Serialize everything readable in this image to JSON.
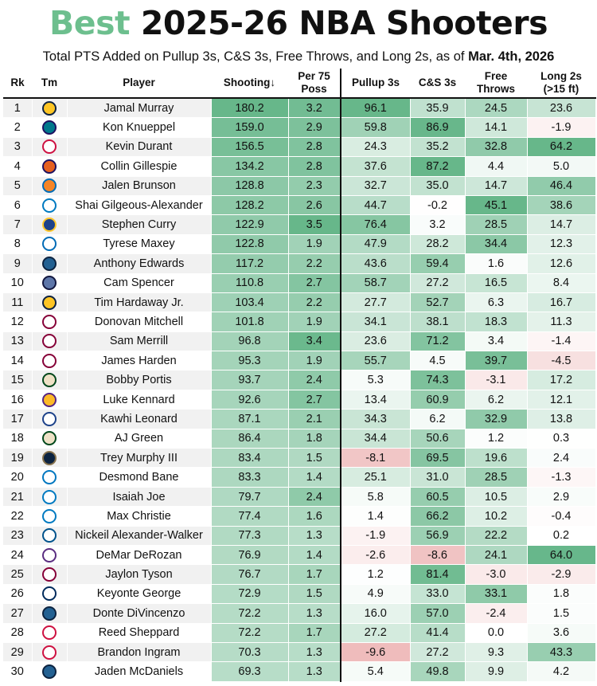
{
  "title": {
    "accent": "Best",
    "rest": "2025-26 NBA Shooters"
  },
  "subtitle": {
    "text": "Total PTS Added on Pullup 3s, C&S 3s, Free Throws, and Long 2s, as of ",
    "date": "Mar. 4th, 2026"
  },
  "headers": {
    "rk": "Rk",
    "tm": "Tm",
    "player": "Player",
    "shooting": "Shooting↓",
    "per75_1": "Per 75",
    "per75_2": "Poss",
    "pullup": "Pullup 3s",
    "cs": "C&S 3s",
    "ft_1": "Free",
    "ft_2": "Throws",
    "long_1": "Long 2s",
    "long_2": "(>15 ft)"
  },
  "colors": {
    "green": "#5fb384",
    "red": "#eeb9b9",
    "accent": "#6dbf8e"
  },
  "chart_data": {
    "type": "table",
    "title": "Best 2025-26 NBA Shooters",
    "columns": [
      "Rk",
      "Tm",
      "Player",
      "Shooting",
      "Per 75 Poss",
      "Pullup 3s",
      "C&S 3s",
      "Free Throws",
      "Long 2s (>15 ft)"
    ],
    "rows": [
      {
        "rk": "1",
        "team": "den-logo-icon",
        "player": "Jamal Murray",
        "shooting": "180.2",
        "per75": "3.2",
        "pullup": "96.1",
        "cs": "35.9",
        "ft": "24.5",
        "long2": "23.6"
      },
      {
        "rk": "2",
        "team": "cha-logo-icon",
        "player": "Kon Knueppel",
        "shooting": "159.0",
        "per75": "2.9",
        "pullup": "59.8",
        "cs": "86.9",
        "ft": "14.1",
        "long2": "-1.9"
      },
      {
        "rk": "3",
        "team": "hou-logo-icon",
        "player": "Kevin Durant",
        "shooting": "156.5",
        "per75": "2.8",
        "pullup": "24.3",
        "cs": "35.2",
        "ft": "32.8",
        "long2": "64.2"
      },
      {
        "rk": "4",
        "team": "phx-logo-icon",
        "player": "Collin Gillespie",
        "shooting": "134.2",
        "per75": "2.8",
        "pullup": "37.6",
        "cs": "87.2",
        "ft": "4.4",
        "long2": "5.0"
      },
      {
        "rk": "5",
        "team": "nyk-logo-icon",
        "player": "Jalen Brunson",
        "shooting": "128.8",
        "per75": "2.3",
        "pullup": "32.7",
        "cs": "35.0",
        "ft": "14.7",
        "long2": "46.4"
      },
      {
        "rk": "6",
        "team": "okc-logo-icon",
        "player": "Shai Gilgeous-Alexander",
        "shooting": "128.2",
        "per75": "2.6",
        "pullup": "44.7",
        "cs": "-0.2",
        "ft": "45.1",
        "long2": "38.6"
      },
      {
        "rk": "7",
        "team": "gsw-logo-icon",
        "player": "Stephen Curry",
        "shooting": "122.9",
        "per75": "3.5",
        "pullup": "76.4",
        "cs": "3.2",
        "ft": "28.5",
        "long2": "14.7"
      },
      {
        "rk": "8",
        "team": "phi-logo-icon",
        "player": "Tyrese Maxey",
        "shooting": "122.8",
        "per75": "1.9",
        "pullup": "47.9",
        "cs": "28.2",
        "ft": "34.4",
        "long2": "12.3"
      },
      {
        "rk": "9",
        "team": "min-logo-icon",
        "player": "Anthony Edwards",
        "shooting": "117.2",
        "per75": "2.2",
        "pullup": "43.6",
        "cs": "59.4",
        "ft": "1.6",
        "long2": "12.6"
      },
      {
        "rk": "10",
        "team": "mem-logo-icon",
        "player": "Cam Spencer",
        "shooting": "110.8",
        "per75": "2.7",
        "pullup": "58.7",
        "cs": "27.2",
        "ft": "16.5",
        "long2": "8.4"
      },
      {
        "rk": "11",
        "team": "den-logo-icon",
        "player": "Tim Hardaway Jr.",
        "shooting": "103.4",
        "per75": "2.2",
        "pullup": "27.7",
        "cs": "52.7",
        "ft": "6.3",
        "long2": "16.7"
      },
      {
        "rk": "12",
        "team": "cle-logo-icon",
        "player": "Donovan Mitchell",
        "shooting": "101.8",
        "per75": "1.9",
        "pullup": "34.1",
        "cs": "38.1",
        "ft": "18.3",
        "long2": "11.3"
      },
      {
        "rk": "13",
        "team": "cle-logo-icon",
        "player": "Sam Merrill",
        "shooting": "96.8",
        "per75": "3.4",
        "pullup": "23.6",
        "cs": "71.2",
        "ft": "3.4",
        "long2": "-1.4"
      },
      {
        "rk": "14",
        "team": "cle-logo-icon",
        "player": "James Harden",
        "shooting": "95.3",
        "per75": "1.9",
        "pullup": "55.7",
        "cs": "4.5",
        "ft": "39.7",
        "long2": "-4.5"
      },
      {
        "rk": "15",
        "team": "mil-logo-icon",
        "player": "Bobby Portis",
        "shooting": "93.7",
        "per75": "2.4",
        "pullup": "5.3",
        "cs": "74.3",
        "ft": "-3.1",
        "long2": "17.2"
      },
      {
        "rk": "16",
        "team": "lal-logo-icon",
        "player": "Luke Kennard",
        "shooting": "92.6",
        "per75": "2.7",
        "pullup": "13.4",
        "cs": "60.9",
        "ft": "6.2",
        "long2": "12.1"
      },
      {
        "rk": "17",
        "team": "lac-logo-icon",
        "player": "Kawhi Leonard",
        "shooting": "87.1",
        "per75": "2.1",
        "pullup": "34.3",
        "cs": "6.2",
        "ft": "32.9",
        "long2": "13.8"
      },
      {
        "rk": "18",
        "team": "mil-logo-icon",
        "player": "AJ Green",
        "shooting": "86.4",
        "per75": "1.8",
        "pullup": "34.4",
        "cs": "50.6",
        "ft": "1.2",
        "long2": "0.3"
      },
      {
        "rk": "19",
        "team": "nop-logo-icon",
        "player": "Trey Murphy III",
        "shooting": "83.4",
        "per75": "1.5",
        "pullup": "-8.1",
        "cs": "69.5",
        "ft": "19.6",
        "long2": "2.4"
      },
      {
        "rk": "20",
        "team": "orl-logo-icon",
        "player": "Desmond Bane",
        "shooting": "83.3",
        "per75": "1.4",
        "pullup": "25.1",
        "cs": "31.0",
        "ft": "28.5",
        "long2": "-1.3"
      },
      {
        "rk": "21",
        "team": "okc-logo-icon",
        "player": "Isaiah Joe",
        "shooting": "79.7",
        "per75": "2.4",
        "pullup": "5.8",
        "cs": "60.5",
        "ft": "10.5",
        "long2": "2.9"
      },
      {
        "rk": "22",
        "team": "okc-logo-icon",
        "player": "Max Christie",
        "shooting": "77.4",
        "per75": "1.6",
        "pullup": "1.4",
        "cs": "66.2",
        "ft": "10.2",
        "long2": "-0.4"
      },
      {
        "rk": "23",
        "team": "dal-logo-icon",
        "player": "Nickeil Alexander-Walker",
        "shooting": "77.3",
        "per75": "1.3",
        "pullup": "-1.9",
        "cs": "56.9",
        "ft": "22.2",
        "long2": "0.2"
      },
      {
        "rk": "24",
        "team": "sac-logo-icon",
        "player": "DeMar DeRozan",
        "shooting": "76.9",
        "per75": "1.4",
        "pullup": "-2.6",
        "cs": "-8.6",
        "ft": "24.1",
        "long2": "64.0"
      },
      {
        "rk": "25",
        "team": "cle-logo-icon",
        "player": "Jaylon Tyson",
        "shooting": "76.7",
        "per75": "1.7",
        "pullup": "1.2",
        "cs": "81.4",
        "ft": "-3.0",
        "long2": "-2.9"
      },
      {
        "rk": "26",
        "team": "uta-logo-icon",
        "player": "Keyonte George",
        "shooting": "72.9",
        "per75": "1.5",
        "pullup": "4.9",
        "cs": "33.0",
        "ft": "33.1",
        "long2": "1.8"
      },
      {
        "rk": "27",
        "team": "min-logo-icon",
        "player": "Donte DiVincenzo",
        "shooting": "72.2",
        "per75": "1.3",
        "pullup": "16.0",
        "cs": "57.0",
        "ft": "-2.4",
        "long2": "1.5"
      },
      {
        "rk": "28",
        "team": "hou-logo-icon",
        "player": "Reed Sheppard",
        "shooting": "72.2",
        "per75": "1.7",
        "pullup": "27.2",
        "cs": "41.4",
        "ft": "0.0",
        "long2": "3.6"
      },
      {
        "rk": "29",
        "team": "tor-logo-icon",
        "player": "Brandon Ingram",
        "shooting": "70.3",
        "per75": "1.3",
        "pullup": "-9.6",
        "cs": "27.2",
        "ft": "9.3",
        "long2": "43.3"
      },
      {
        "rk": "30",
        "team": "min-logo-icon",
        "player": "Jaden McDaniels",
        "shooting": "69.3",
        "per75": "1.3",
        "pullup": "5.4",
        "cs": "49.8",
        "ft": "9.9",
        "long2": "4.2"
      }
    ]
  }
}
